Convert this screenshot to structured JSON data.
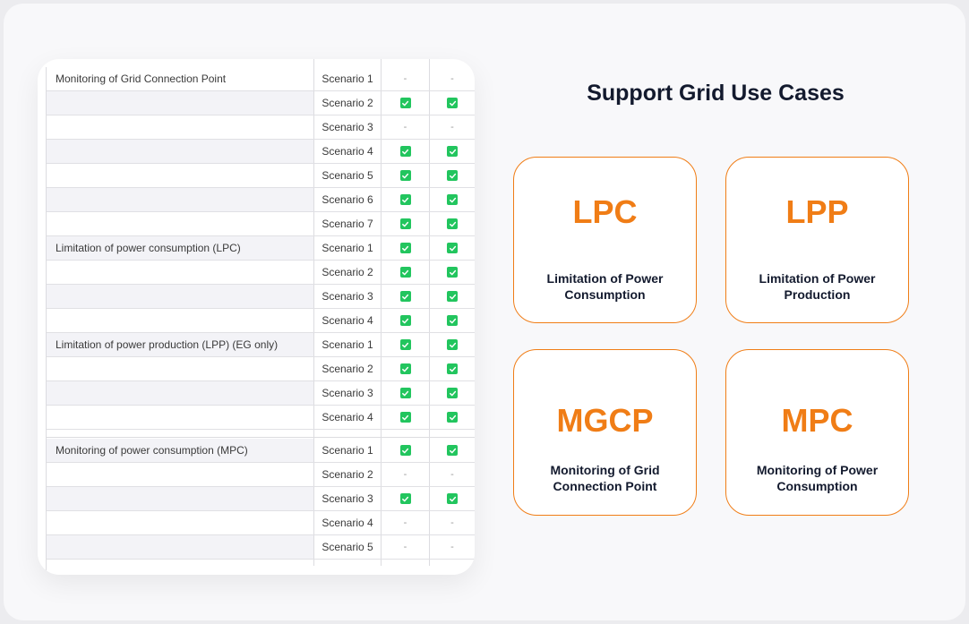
{
  "table": {
    "rows": [
      {
        "group": "Monitoring of Grid Connection Point",
        "scenario": "Scenario 1",
        "col_a": "dash",
        "col_b": "dash"
      },
      {
        "group": "",
        "scenario": "Scenario 2",
        "col_a": "check",
        "col_b": "check"
      },
      {
        "group": "",
        "scenario": "Scenario 3",
        "col_a": "dash",
        "col_b": "dash"
      },
      {
        "group": "",
        "scenario": "Scenario 4",
        "col_a": "check",
        "col_b": "check"
      },
      {
        "group": "",
        "scenario": "Scenario 5",
        "col_a": "check",
        "col_b": "check"
      },
      {
        "group": "",
        "scenario": "Scenario 6",
        "col_a": "check",
        "col_b": "check"
      },
      {
        "group": "",
        "scenario": "Scenario 7",
        "col_a": "check",
        "col_b": "check"
      },
      {
        "group": "Limitation of power consumption (LPC)",
        "scenario": "Scenario 1",
        "col_a": "check",
        "col_b": "check"
      },
      {
        "group": "",
        "scenario": "Scenario 2",
        "col_a": "check",
        "col_b": "check"
      },
      {
        "group": "",
        "scenario": "Scenario 3",
        "col_a": "check",
        "col_b": "check"
      },
      {
        "group": "",
        "scenario": "Scenario 4",
        "col_a": "check",
        "col_b": "check"
      },
      {
        "group": "Limitation of power production (LPP) (EG only)",
        "scenario": "Scenario 1",
        "col_a": "check",
        "col_b": "check"
      },
      {
        "group": "",
        "scenario": "Scenario 2",
        "col_a": "check",
        "col_b": "check"
      },
      {
        "group": "",
        "scenario": "Scenario 3",
        "col_a": "check",
        "col_b": "check"
      },
      {
        "group": "",
        "scenario": "Scenario 4",
        "col_a": "check",
        "col_b": "check"
      },
      {
        "group": "Monitoring of power consumption (MPC)",
        "scenario": "Scenario 1",
        "col_a": "check",
        "col_b": "check"
      },
      {
        "group": "",
        "scenario": "Scenario 2",
        "col_a": "dash",
        "col_b": "dash"
      },
      {
        "group": "",
        "scenario": "Scenario 3",
        "col_a": "check",
        "col_b": "check"
      },
      {
        "group": "",
        "scenario": "Scenario 4",
        "col_a": "dash",
        "col_b": "dash"
      },
      {
        "group": "",
        "scenario": "Scenario 5",
        "col_a": "dash",
        "col_b": "dash"
      }
    ]
  },
  "dash_text": "-",
  "panel": {
    "title": "Support Grid Use Cases",
    "cards": [
      {
        "abbr": "LPC",
        "desc": "Limitation of Power Consumption"
      },
      {
        "abbr": "LPP",
        "desc": "Limitation of Power Production"
      },
      {
        "abbr": "MGCP",
        "desc": "Monitoring of Grid Connection Point"
      },
      {
        "abbr": "MPC",
        "desc": "Monitoring of Power Consumption"
      }
    ]
  },
  "colors": {
    "accent": "#f07d16",
    "check": "#22c55e",
    "title": "#131a2e"
  }
}
